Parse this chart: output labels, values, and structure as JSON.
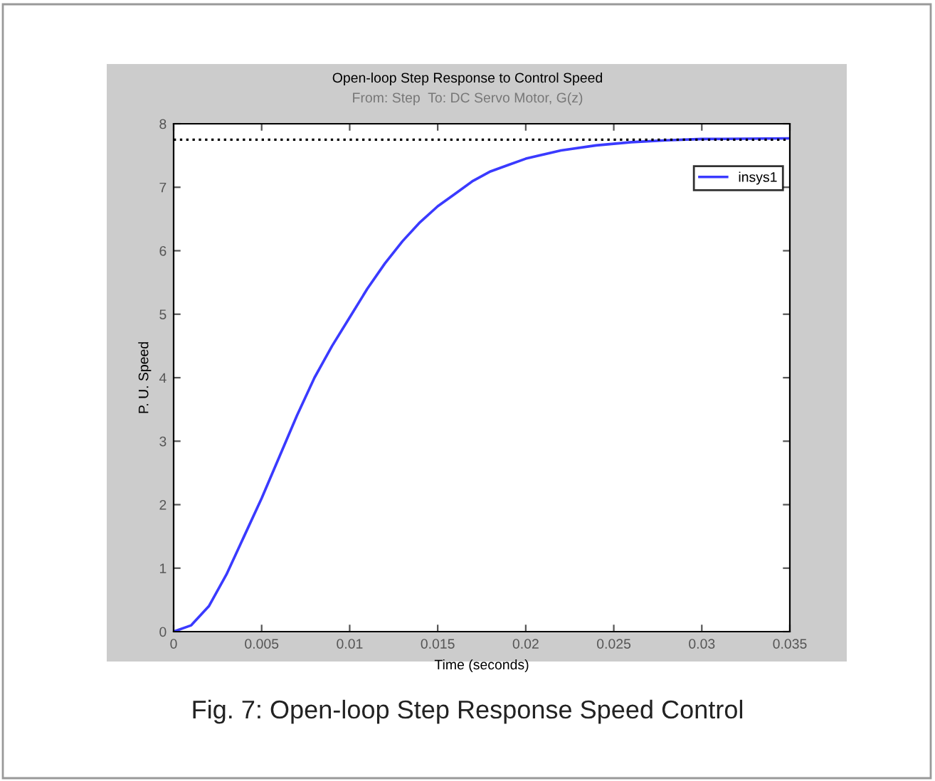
{
  "chart_data": {
    "type": "line",
    "title": "Open-loop Step Response to Control Speed",
    "subtitle": "From: Step  To: DC Servo Motor, G(z)",
    "xlabel": "Time (seconds)",
    "ylabel": "P. U. Speed",
    "x": [
      0,
      0.001,
      0.002,
      0.003,
      0.004,
      0.005,
      0.006,
      0.007,
      0.008,
      0.009,
      0.01,
      0.011,
      0.012,
      0.013,
      0.014,
      0.015,
      0.016,
      0.017,
      0.018,
      0.019,
      0.02,
      0.022,
      0.024,
      0.026,
      0.028,
      0.03,
      0.035
    ],
    "series": [
      {
        "name": "insys1",
        "color": "#3a3aff",
        "values": [
          0,
          0.1,
          0.4,
          0.9,
          1.5,
          2.1,
          2.75,
          3.4,
          4.0,
          4.5,
          4.95,
          5.4,
          5.8,
          6.15,
          6.45,
          6.7,
          6.9,
          7.1,
          7.25,
          7.35,
          7.45,
          7.58,
          7.66,
          7.71,
          7.74,
          7.76,
          7.77
        ]
      }
    ],
    "xlim": [
      0,
      0.035
    ],
    "xticks": [
      0,
      0.005,
      0.01,
      0.015,
      0.02,
      0.025,
      0.03,
      0.035
    ],
    "ylim": [
      0,
      8
    ],
    "yticks": [
      0,
      1,
      2,
      3,
      4,
      5,
      6,
      7,
      8
    ],
    "ref_lines": [
      {
        "axis": "y",
        "value": 7.75,
        "color": "#000000",
        "line_style": "dotted"
      }
    ],
    "legend": "top right",
    "grid": false,
    "line_style": "solid",
    "marker": "none",
    "annotations": [
      "Fig. 7: Open-loop Step Response Speed Control"
    ]
  }
}
